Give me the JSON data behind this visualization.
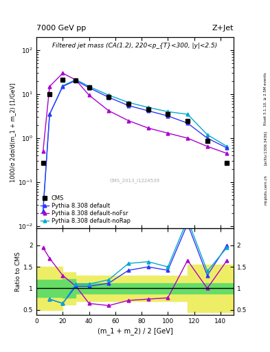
{
  "title_left": "7000 GeV pp",
  "title_right": "Z+Jet",
  "plot_title": "Filtered jet mass (CA(1.2), 220<p_{T}<300, |y|<2.5)",
  "ylabel_main": "1000/σ 2dσ/d(m_1 + m_2) [1/GeV]",
  "ylabel_ratio": "Ratio to CMS",
  "xlabel": "(m_1 + m_2) / 2 [GeV]",
  "right_label_1": "Rivet 3.1.10, ≥ 2.5M events",
  "right_label_2": "[arXiv:1306.3436]",
  "right_label_3": "mcplots.cern.ch",
  "cms_id": "CMS_2013_I1224539",
  "cms_x": [
    5,
    10,
    20,
    30,
    40,
    55,
    70,
    85,
    100,
    115,
    130,
    145
  ],
  "cms_y": [
    0.27,
    10.0,
    21.5,
    20.5,
    14.5,
    8.8,
    6.0,
    4.5,
    3.5,
    2.5,
    0.85,
    0.27
  ],
  "py_default_x": [
    5,
    10,
    20,
    30,
    40,
    55,
    70,
    85,
    100,
    115,
    130,
    145
  ],
  "py_default_y": [
    0.022,
    3.5,
    15.0,
    20.5,
    14.0,
    8.5,
    5.5,
    4.2,
    3.2,
    2.2,
    1.0,
    0.6
  ],
  "py_noFsr_x": [
    5,
    10,
    20,
    30,
    40,
    55,
    70,
    85,
    100,
    115,
    130,
    145
  ],
  "py_noFsr_y": [
    0.5,
    15.0,
    30.0,
    21.0,
    9.5,
    4.2,
    2.5,
    1.7,
    1.3,
    1.0,
    0.65,
    0.45
  ],
  "py_noRap_x": [
    5,
    10,
    20,
    30,
    40,
    55,
    70,
    85,
    100,
    115,
    130,
    145
  ],
  "py_noRap_y": [
    0.022,
    3.5,
    15.5,
    21.5,
    15.0,
    9.5,
    6.5,
    5.0,
    4.0,
    3.5,
    1.2,
    0.65
  ],
  "ratio_default_x": [
    10,
    20,
    30,
    40,
    55,
    70,
    85,
    100,
    115,
    130,
    145
  ],
  "ratio_default_y": [
    0.75,
    0.65,
    1.05,
    1.05,
    1.12,
    1.42,
    1.5,
    1.42,
    2.5,
    1.3,
    2.0
  ],
  "ratio_noFsr_x": [
    5,
    10,
    20,
    30,
    40,
    55,
    70,
    85,
    100,
    115,
    130,
    145
  ],
  "ratio_noFsr_y": [
    1.95,
    1.7,
    1.3,
    1.05,
    0.65,
    0.6,
    0.72,
    0.75,
    0.78,
    1.65,
    1.0,
    1.65
  ],
  "ratio_noRap_x": [
    10,
    20,
    30,
    40,
    55,
    70,
    85,
    100,
    115,
    130,
    145
  ],
  "ratio_noRap_y": [
    0.75,
    0.65,
    1.1,
    1.1,
    1.2,
    1.58,
    1.62,
    1.5,
    2.6,
    1.4,
    1.95
  ],
  "band_edges": [
    0,
    10,
    20,
    30,
    40,
    55,
    70,
    85,
    100,
    115,
    130,
    145,
    150
  ],
  "band_green": [
    0.2,
    0.2,
    0.22,
    0.12,
    0.12,
    0.12,
    0.12,
    0.12,
    0.12,
    0.12,
    0.12,
    0.12
  ],
  "band_yellow": [
    0.5,
    0.5,
    0.38,
    0.3,
    0.3,
    0.3,
    0.3,
    0.3,
    0.3,
    0.55,
    0.55,
    0.55
  ],
  "color_default": "#3333ff",
  "color_noFsr": "#aa00cc",
  "color_noRap": "#00aacc",
  "color_cms": "#000000",
  "color_green": "#66dd66",
  "color_yellow": "#eeee66",
  "ylim_main": [
    0.009,
    200
  ],
  "ylim_ratio": [
    0.38,
    2.4
  ],
  "xlim": [
    0,
    150
  ]
}
